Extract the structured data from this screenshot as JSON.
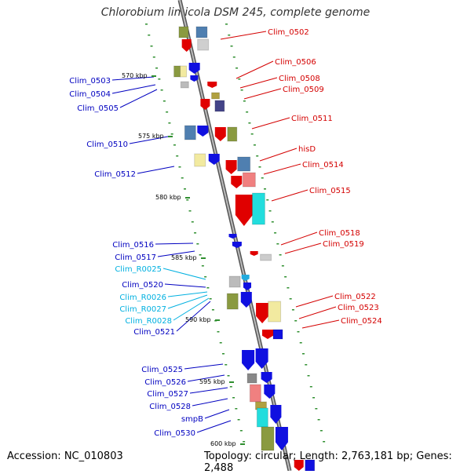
{
  "title": "Chlorobium limicola DSM 245, complete genome",
  "accession": "Accession: NC_010803",
  "summary": "Topology: circular; Length: 2,763,181 bp; Genes: 2,488",
  "colors": {
    "forward_label": "#d40000",
    "reverse_label": "#0000c0",
    "rna_label": "#00b0e0",
    "backbone": "#888888",
    "tick": "#2f8f2f"
  },
  "ticks": [
    "570 kbp",
    "575 kbp",
    "580 kbp",
    "585 kbp",
    "590 kbp",
    "595 kbp",
    "600 kbp"
  ],
  "genes_right": [
    "Clim_0502",
    "Clim_0506",
    "Clim_0508",
    "Clim_0509",
    "Clim_0511",
    "hisD",
    "Clim_0514",
    "Clim_0515",
    "Clim_0518",
    "Clim_0519",
    "Clim_0522",
    "Clim_0523",
    "Clim_0524"
  ],
  "genes_left": [
    "Clim_0503",
    "Clim_0504",
    "Clim_0505",
    "Clim_0510",
    "Clim_0512",
    "Clim_0516",
    "Clim_0517",
    "Clim_R0025",
    "Clim_0520",
    "Clim_R0026",
    "Clim_R0027",
    "Clim_R0028",
    "Clim_0521",
    "Clim_0525",
    "Clim_0526",
    "Clim_0527",
    "Clim_0528",
    "smpB",
    "Clim_0530"
  ]
}
